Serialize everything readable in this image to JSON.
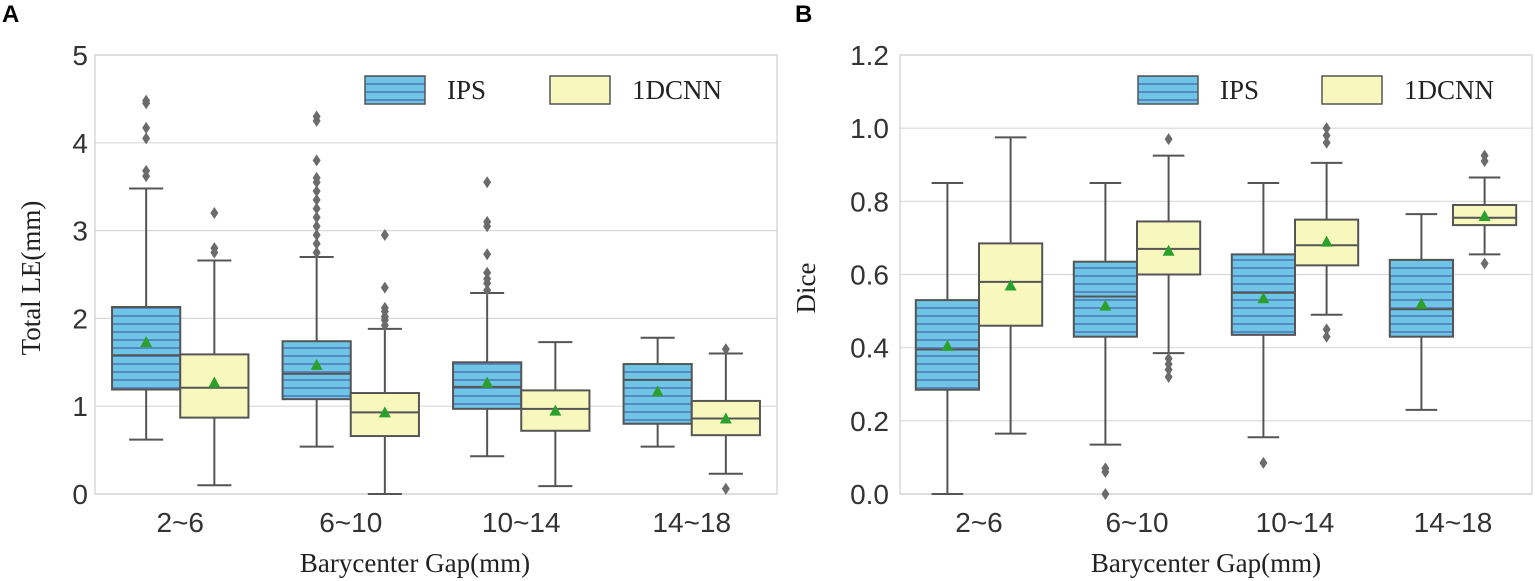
{
  "colors": {
    "ips_fill": "#6ec6e6",
    "ips_stripe": "#5a86c4",
    "cnn_fill": "#f8f8be",
    "line": "#555555",
    "grid": "#d9d9d9",
    "mean": "#2ca02c",
    "outlier": "#6b6b6b"
  },
  "chart_data": [
    {
      "panel": "A",
      "type": "box",
      "title": "",
      "xlabel": "Barycenter Gap(mm)",
      "ylabel": "Total  LE(mm)",
      "ylim": [
        0,
        5
      ],
      "yticks": [
        0,
        1,
        2,
        3,
        4,
        5
      ],
      "ytick_labels": [
        "0",
        "1",
        "2",
        "3",
        "4",
        "5"
      ],
      "grid": "horizontal",
      "legend_position": "top-right",
      "categories": [
        "2~6",
        "6~10",
        "10~14",
        "14~18"
      ],
      "series": [
        {
          "name": "IPS",
          "boxes": [
            {
              "whislo": 0.62,
              "q1": 1.19,
              "med": 1.58,
              "q3": 2.13,
              "whishi": 3.48,
              "mean": 1.73,
              "fliers": [
                3.62,
                3.68,
                4.05,
                4.17,
                4.45,
                4.48
              ]
            },
            {
              "whislo": 0.54,
              "q1": 1.08,
              "med": 1.37,
              "q3": 1.74,
              "whishi": 2.7,
              "mean": 1.47,
              "fliers": [
                2.75,
                2.85,
                2.95,
                3.05,
                3.15,
                3.25,
                3.35,
                3.45,
                3.55,
                3.6,
                3.8,
                4.25,
                4.3
              ]
            },
            {
              "whislo": 0.43,
              "q1": 0.97,
              "med": 1.22,
              "q3": 1.5,
              "whishi": 2.29,
              "mean": 1.27,
              "fliers": [
                2.32,
                2.4,
                2.45,
                2.52,
                2.73,
                3.05,
                3.1,
                3.55
              ]
            },
            {
              "whislo": 0.54,
              "q1": 0.8,
              "med": 1.3,
              "q3": 1.48,
              "whishi": 1.78,
              "mean": 1.17,
              "fliers": []
            }
          ]
        },
        {
          "name": "1DCNN",
          "boxes": [
            {
              "whislo": 0.1,
              "q1": 0.87,
              "med": 1.21,
              "q3": 1.59,
              "whishi": 2.66,
              "mean": 1.27,
              "fliers": [
                2.75,
                2.8,
                3.2
              ]
            },
            {
              "whislo": 0.0,
              "q1": 0.66,
              "med": 0.93,
              "q3": 1.15,
              "whishi": 1.88,
              "mean": 0.93,
              "fliers": [
                1.92,
                1.98,
                2.02,
                2.08,
                2.12,
                2.35,
                2.95
              ]
            },
            {
              "whislo": 0.09,
              "q1": 0.72,
              "med": 0.97,
              "q3": 1.18,
              "whishi": 1.73,
              "mean": 0.95,
              "fliers": []
            },
            {
              "whislo": 0.23,
              "q1": 0.67,
              "med": 0.86,
              "q3": 1.06,
              "whishi": 1.6,
              "mean": 0.86,
              "fliers": [
                0.06,
                1.65
              ]
            }
          ]
        }
      ]
    },
    {
      "panel": "B",
      "type": "box",
      "title": "",
      "xlabel": "Barycenter Gap(mm)",
      "ylabel": "Dice",
      "ylim": [
        0,
        1.2
      ],
      "yticks": [
        0,
        0.2,
        0.4,
        0.6,
        0.8,
        1.0,
        1.2
      ],
      "ytick_labels": [
        "0.0",
        "0.2",
        "0.4",
        "0.6",
        "0.8",
        "1.0",
        "1.2"
      ],
      "grid": "horizontal",
      "legend_position": "top-right",
      "categories": [
        "2~6",
        "6~10",
        "10~14",
        "14~18"
      ],
      "series": [
        {
          "name": "IPS",
          "boxes": [
            {
              "whislo": 0.0,
              "q1": 0.285,
              "med": 0.395,
              "q3": 0.53,
              "whishi": 0.85,
              "mean": 0.405,
              "fliers": []
            },
            {
              "whislo": 0.135,
              "q1": 0.43,
              "med": 0.54,
              "q3": 0.635,
              "whishi": 0.85,
              "mean": 0.515,
              "fliers": [
                0.0,
                0.06,
                0.07
              ]
            },
            {
              "whislo": 0.155,
              "q1": 0.435,
              "med": 0.55,
              "q3": 0.655,
              "whishi": 0.85,
              "mean": 0.535,
              "fliers": [
                0.085
              ]
            },
            {
              "whislo": 0.23,
              "q1": 0.43,
              "med": 0.505,
              "q3": 0.64,
              "whishi": 0.765,
              "mean": 0.52,
              "fliers": []
            }
          ]
        },
        {
          "name": "1DCNN",
          "boxes": [
            {
              "whislo": 0.165,
              "q1": 0.46,
              "med": 0.58,
              "q3": 0.685,
              "whishi": 0.975,
              "mean": 0.57,
              "fliers": []
            },
            {
              "whislo": 0.385,
              "q1": 0.6,
              "med": 0.67,
              "q3": 0.745,
              "whishi": 0.925,
              "mean": 0.665,
              "fliers": [
                0.32,
                0.34,
                0.355,
                0.37,
                0.97
              ]
            },
            {
              "whislo": 0.49,
              "q1": 0.625,
              "med": 0.68,
              "q3": 0.75,
              "whishi": 0.905,
              "mean": 0.69,
              "fliers": [
                0.43,
                0.45,
                0.96,
                0.98,
                1.0
              ]
            },
            {
              "whislo": 0.655,
              "q1": 0.735,
              "med": 0.755,
              "q3": 0.79,
              "whishi": 0.865,
              "mean": 0.76,
              "fliers": [
                0.63,
                0.91,
                0.925
              ]
            }
          ]
        }
      ]
    }
  ]
}
